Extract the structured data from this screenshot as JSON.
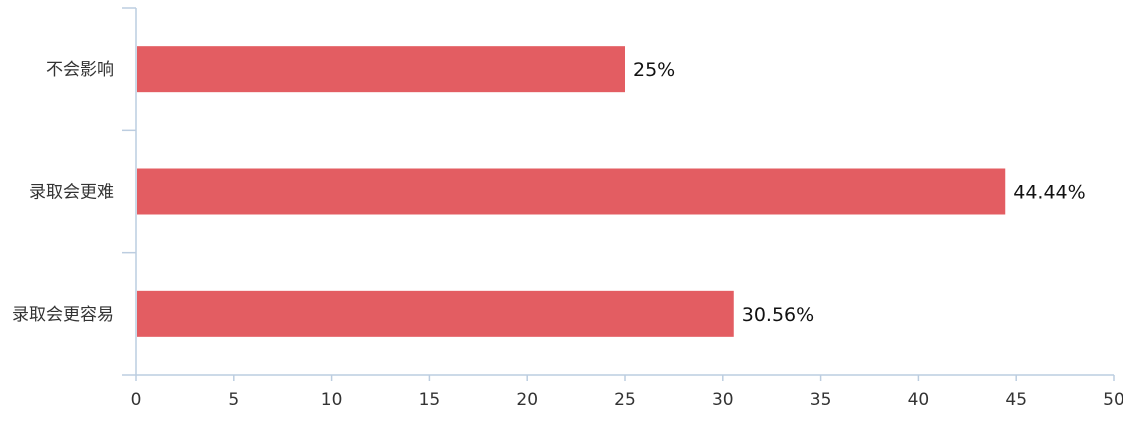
{
  "chart_data": {
    "type": "bar",
    "orientation": "horizontal",
    "categories": [
      "不会影响",
      "录取会更难",
      "录取会更容易"
    ],
    "values": [
      25,
      44.44,
      30.56
    ],
    "data_labels": [
      "25%",
      "44.44%",
      "30.56%"
    ],
    "xlim": [
      0,
      50
    ],
    "xticks": [
      "0",
      "5",
      "10",
      "15",
      "20",
      "25",
      "30",
      "35",
      "40",
      "45",
      "50"
    ],
    "title": "",
    "xlabel": "",
    "ylabel": "",
    "grid": false,
    "legend": "none",
    "bar_color": "#E35D62",
    "axis_color": "#BCCDE0"
  }
}
